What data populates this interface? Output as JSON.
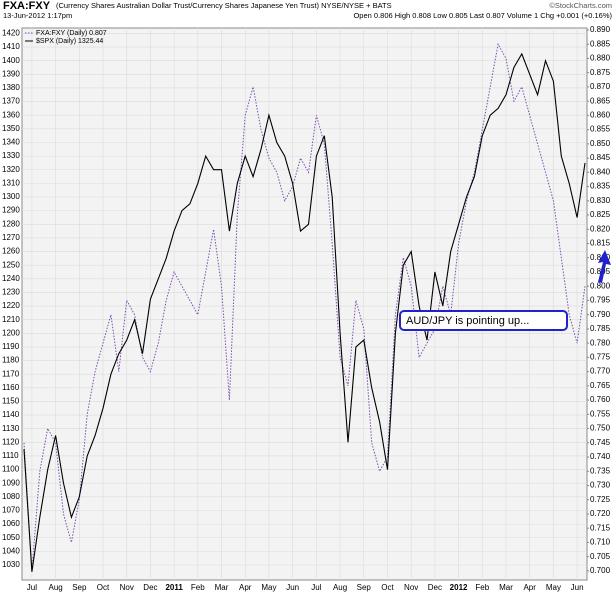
{
  "chart_data": {
    "type": "line",
    "title": "FXA:FXY",
    "subtitle": "(Currency Shares Australian Dollar Trust/Currency Shares Japanese Yen Trust) NYSE/NYSE + BATS",
    "date": "13-Jun-2012 1:17pm",
    "quote": "Open 0.806  High 0.808  Low 0.805  Last 0.807  Volume 1  Chg +0.001 (+0.16%)",
    "source": "©StockCharts.com",
    "annotation": "AUD/JPY is pointing up...",
    "grid": true,
    "categories": [
      null,
      "Jul",
      null,
      null,
      "Aug",
      null,
      null,
      "Sep",
      null,
      null,
      "Oct",
      null,
      null,
      "Nov",
      null,
      null,
      "Dec",
      null,
      null,
      "2011",
      null,
      null,
      "Feb",
      null,
      null,
      "Mar",
      null,
      null,
      "Apr",
      null,
      null,
      "May",
      null,
      null,
      "Jun",
      null,
      null,
      "Jul",
      null,
      null,
      "Aug",
      null,
      null,
      "Sep",
      null,
      null,
      "Oct",
      null,
      null,
      "Nov",
      null,
      null,
      "Dec",
      null,
      null,
      "2012",
      null,
      null,
      "Feb",
      null,
      null,
      "Mar",
      null,
      null,
      "Apr",
      null,
      null,
      "May",
      null,
      null,
      "Jun",
      null
    ],
    "series": [
      {
        "name": "FXA:FXY (Daily) 0.807",
        "color": "#7a4fb0",
        "axis": "y2",
        "dash": true,
        "values": [
          0.745,
          0.7,
          0.735,
          0.75,
          0.745,
          0.72,
          0.71,
          0.725,
          0.755,
          0.77,
          0.78,
          0.79,
          0.77,
          0.795,
          0.79,
          0.775,
          0.77,
          0.78,
          0.795,
          0.805,
          0.8,
          0.795,
          0.79,
          0.805,
          0.82,
          0.8,
          0.76,
          0.825,
          0.86,
          0.87,
          0.855,
          0.845,
          0.84,
          0.83,
          0.835,
          0.845,
          0.84,
          0.86,
          0.85,
          0.815,
          0.775,
          0.765,
          0.795,
          0.785,
          0.745,
          0.735,
          0.74,
          0.79,
          0.81,
          0.8,
          0.775,
          0.78,
          0.785,
          0.8,
          0.79,
          0.815,
          0.83,
          0.84,
          0.855,
          0.87,
          0.885,
          0.88,
          0.865,
          0.87,
          0.86,
          0.85,
          0.84,
          0.83,
          0.81,
          0.79,
          0.78,
          0.8
        ]
      },
      {
        "name": "$SPX (Daily) 1325.44",
        "color": "#000000",
        "values": [
          1115,
          1025,
          1065,
          1100,
          1125,
          1090,
          1065,
          1080,
          1110,
          1125,
          1145,
          1170,
          1185,
          1195,
          1210,
          1185,
          1225,
          1240,
          1255,
          1275,
          1290,
          1295,
          1310,
          1330,
          1320,
          1320,
          1275,
          1310,
          1330,
          1315,
          1335,
          1360,
          1340,
          1330,
          1310,
          1275,
          1280,
          1330,
          1345,
          1300,
          1200,
          1120,
          1190,
          1195,
          1160,
          1135,
          1100,
          1200,
          1250,
          1260,
          1220,
          1195,
          1245,
          1220,
          1260,
          1280,
          1300,
          1315,
          1345,
          1360,
          1365,
          1375,
          1395,
          1405,
          1390,
          1375,
          1400,
          1385,
          1330,
          1310,
          1285,
          1325
        ]
      }
    ],
    "ylim": [
      1019,
      1424
    ],
    "yticks": [
      1030,
      1040,
      1050,
      1060,
      1070,
      1080,
      1090,
      1100,
      1110,
      1120,
      1130,
      1140,
      1150,
      1160,
      1170,
      1180,
      1190,
      1200,
      1210,
      1220,
      1230,
      1240,
      1250,
      1260,
      1270,
      1280,
      1290,
      1300,
      1310,
      1320,
      1330,
      1340,
      1350,
      1360,
      1370,
      1380,
      1390,
      1400,
      1410,
      1420
    ],
    "y2lim": [
      0.6968,
      0.8907
    ],
    "y2ticks": [
      {
        "value": 0.7,
        "label": "0.700"
      },
      {
        "value": 0.705,
        "label": "0.705"
      },
      {
        "value": 0.71,
        "label": "0.710"
      },
      {
        "value": 0.715,
        "label": "0.715"
      },
      {
        "value": 0.72,
        "label": "0.720"
      },
      {
        "value": 0.725,
        "label": "0.725"
      },
      {
        "value": 0.73,
        "label": "0.730"
      },
      {
        "value": 0.735,
        "label": "0.735"
      },
      {
        "value": 0.74,
        "label": "0.740"
      },
      {
        "value": 0.745,
        "label": "0.745"
      },
      {
        "value": 0.75,
        "label": "0.750"
      },
      {
        "value": 0.755,
        "label": "0.755"
      },
      {
        "value": 0.76,
        "label": "0.760"
      },
      {
        "value": 0.765,
        "label": "0.765"
      },
      {
        "value": 0.77,
        "label": "0.770"
      },
      {
        "value": 0.775,
        "label": "0.775"
      },
      {
        "value": 0.78,
        "label": "0.780"
      },
      {
        "value": 0.785,
        "label": "0.785"
      },
      {
        "value": 0.79,
        "label": "0.790"
      },
      {
        "value": 0.795,
        "label": "0.795"
      },
      {
        "value": 0.8,
        "label": "0.800"
      },
      {
        "value": 0.805,
        "label": "0.805"
      },
      {
        "value": 0.81,
        "label": "0.810"
      },
      {
        "value": 0.815,
        "label": "0.815"
      },
      {
        "value": 0.82,
        "label": "0.820"
      },
      {
        "value": 0.825,
        "label": "0.825"
      },
      {
        "value": 0.83,
        "label": "0.830"
      },
      {
        "value": 0.835,
        "label": "0.835"
      },
      {
        "value": 0.84,
        "label": "0.840"
      },
      {
        "value": 0.845,
        "label": "0.845"
      },
      {
        "value": 0.85,
        "label": "0.850"
      },
      {
        "value": 0.855,
        "label": "0.855"
      },
      {
        "value": 0.86,
        "label": "0.860"
      },
      {
        "value": 0.865,
        "label": "0.865"
      },
      {
        "value": 0.87,
        "label": "0.870"
      },
      {
        "value": 0.875,
        "label": "0.875"
      },
      {
        "value": 0.88,
        "label": "0.880"
      },
      {
        "value": 0.885,
        "label": "0.885"
      },
      {
        "value": 0.89,
        "label": "0.890"
      }
    ]
  }
}
